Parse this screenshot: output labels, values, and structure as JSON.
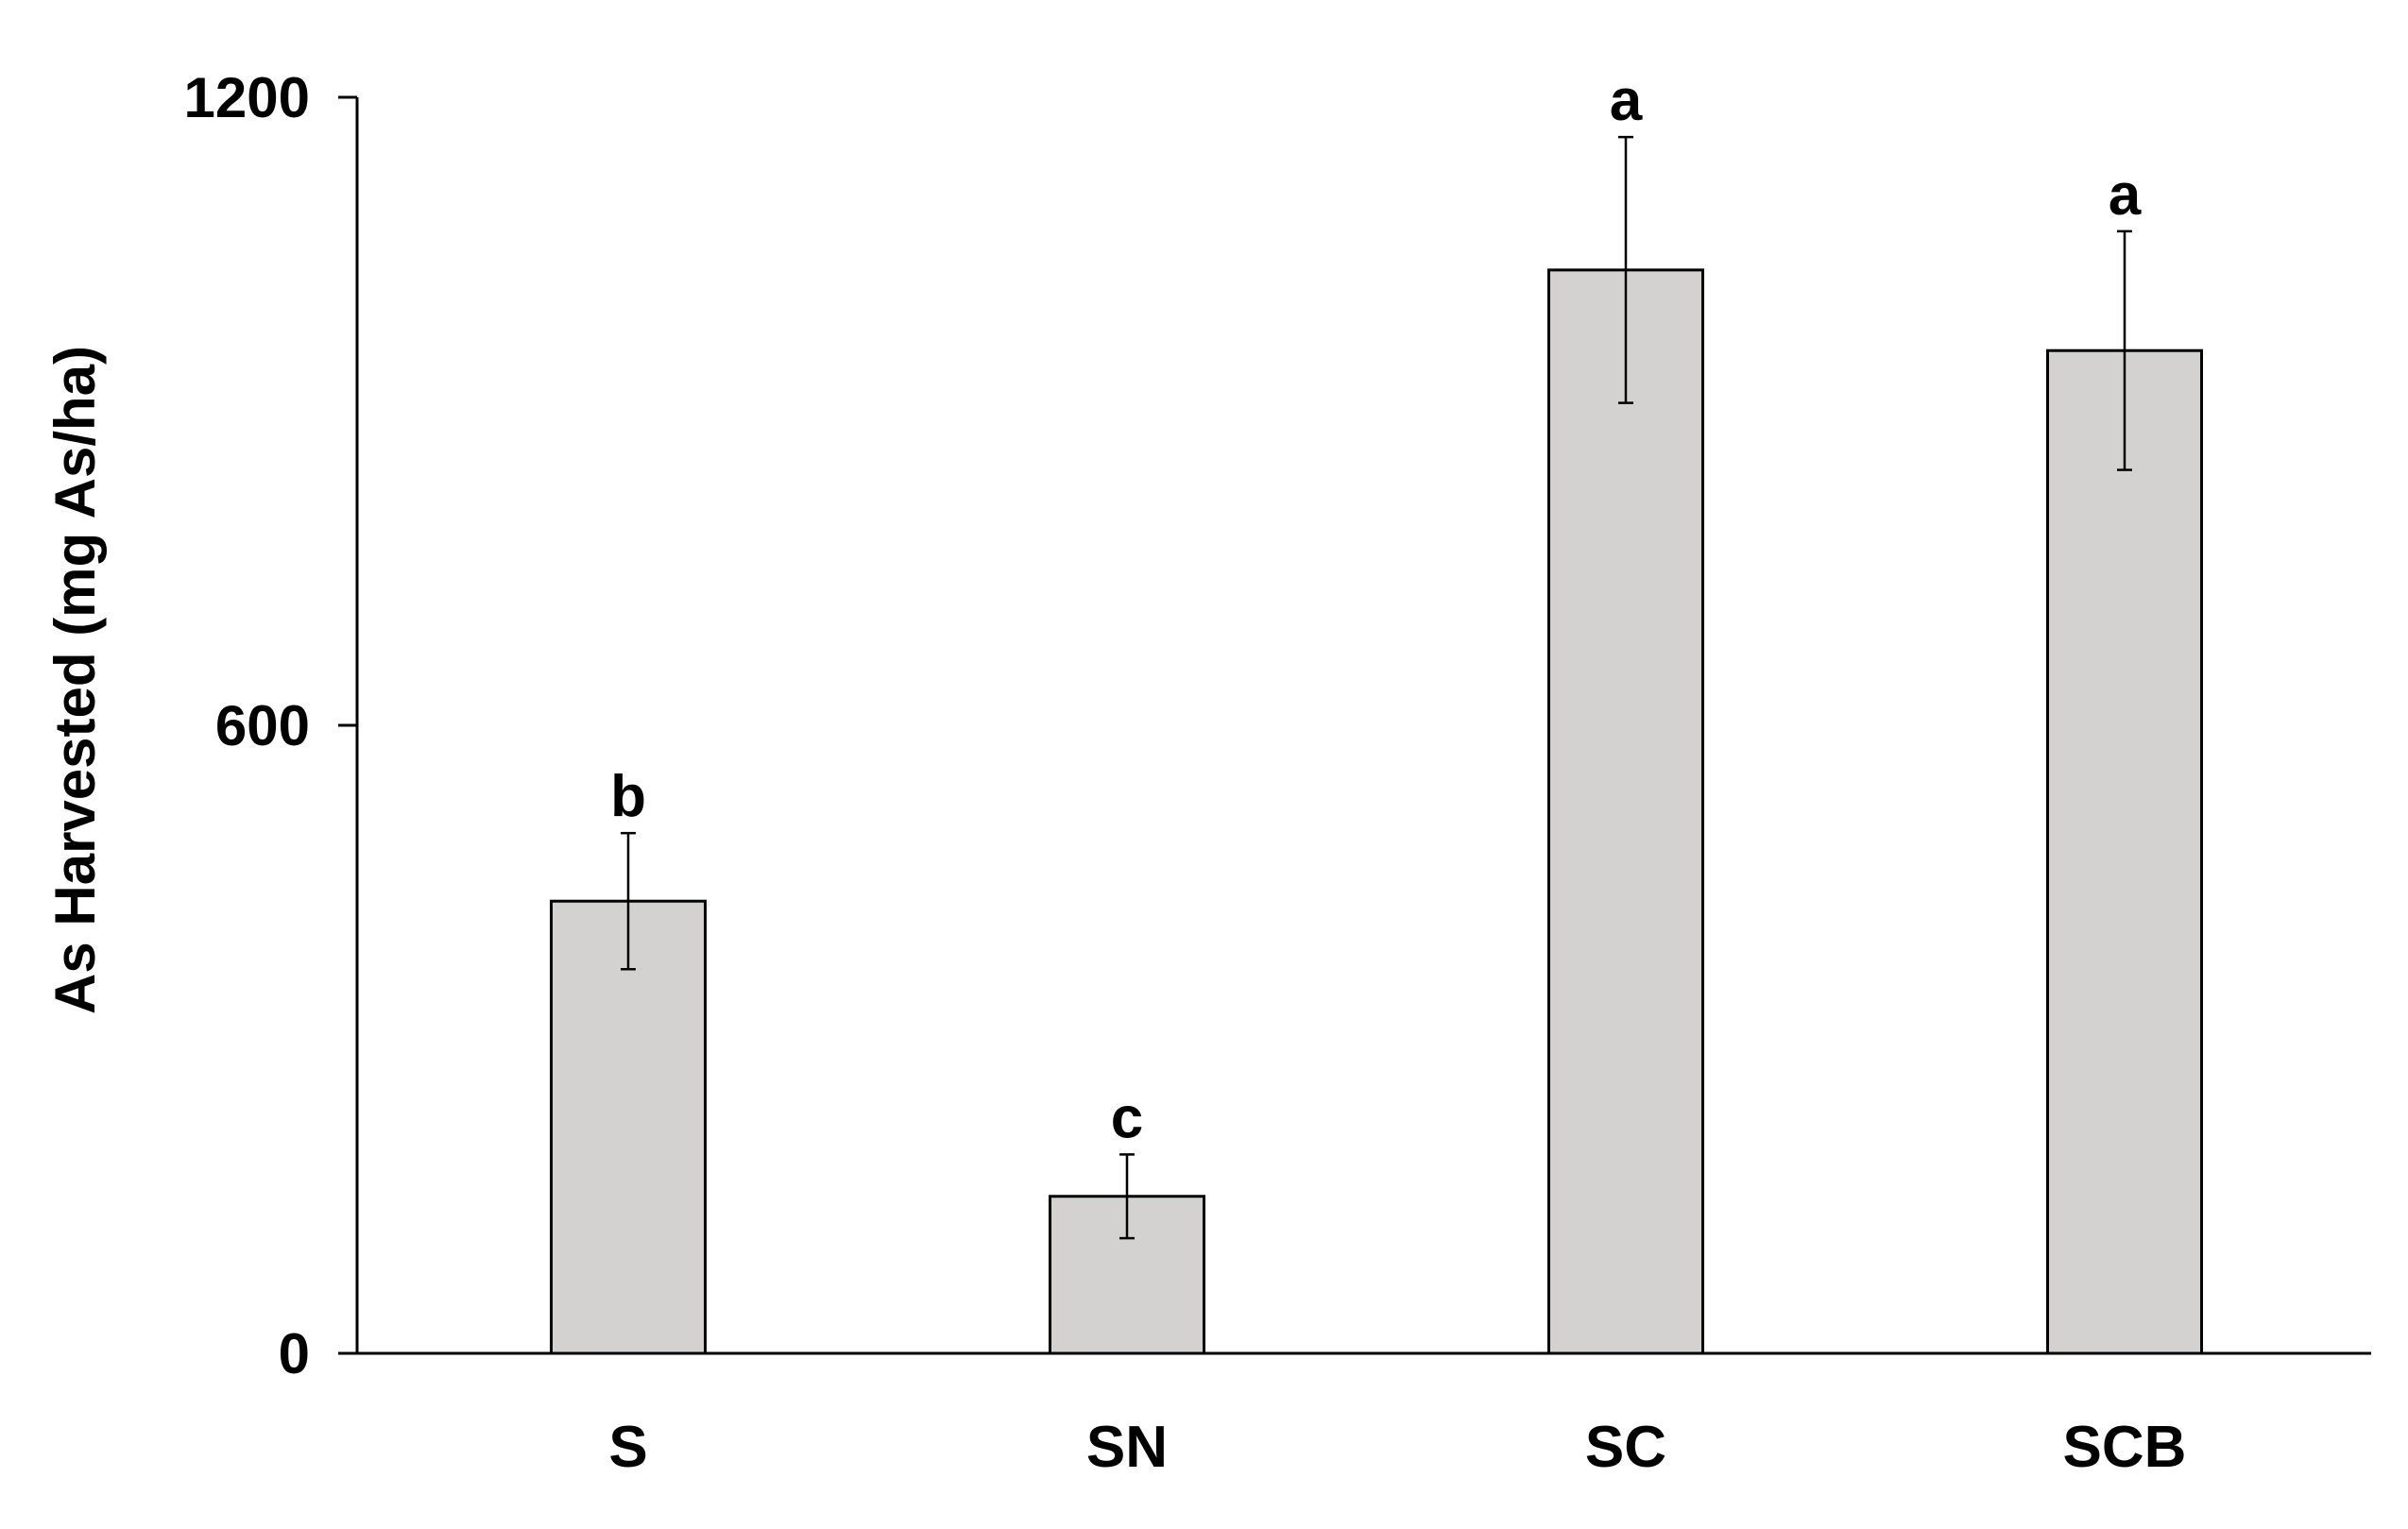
{
  "chart_data": {
    "type": "bar",
    "title": "",
    "xlabel": "",
    "ylabel": "As Harvested (mg As/ha)",
    "categories": [
      "S",
      "SN",
      "SC",
      "SCB"
    ],
    "values": [
      432,
      150,
      1035,
      958
    ],
    "error": [
      65,
      40,
      127,
      114
    ],
    "significance": [
      "b",
      "c",
      "a",
      "a"
    ],
    "ylim": [
      0,
      1200
    ],
    "yticks": [
      "0",
      "600",
      "1200"
    ],
    "grid": false,
    "legend": "none",
    "colors": {
      "bar_fill": "#d3d2d0",
      "bar_stroke": "#000000",
      "axis": "#000000"
    }
  }
}
